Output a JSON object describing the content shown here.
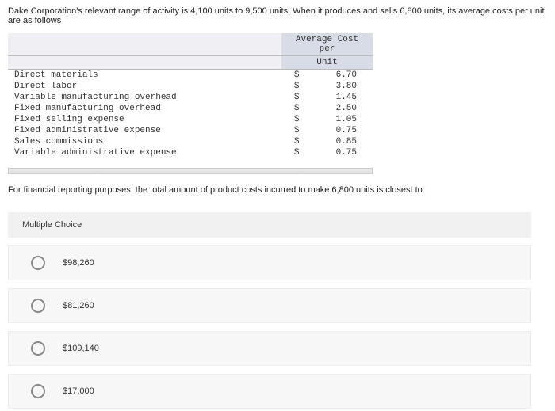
{
  "question": {
    "intro": "Dake Corporation's relevant range of activity is 4,100 units to 9,500 units. When it produces and sells 6,800 units, its average costs per unit are as follows",
    "prompt": "For financial reporting purposes, the total amount of product costs incurred to make 6,800 units is closest to:"
  },
  "cost_table": {
    "header_line1": "Average Cost per",
    "header_line2": "Unit",
    "currency_symbol": "$",
    "header_bg": "#d8dce6",
    "font": "Courier New",
    "rows": [
      {
        "label": "Direct materials",
        "value": "6.70"
      },
      {
        "label": "Direct labor",
        "value": "3.80"
      },
      {
        "label": "Variable manufacturing overhead",
        "value": "1.45"
      },
      {
        "label": "Fixed manufacturing overhead",
        "value": "2.50"
      },
      {
        "label": "Fixed selling expense",
        "value": "1.05"
      },
      {
        "label": "Fixed administrative expense",
        "value": "0.75"
      },
      {
        "label": "Sales commissions",
        "value": "0.85"
      },
      {
        "label": "Variable administrative expense",
        "value": "0.75"
      }
    ]
  },
  "multiple_choice": {
    "header": "Multiple Choice",
    "options": [
      {
        "label": "$98,260"
      },
      {
        "label": "$81,260"
      },
      {
        "label": "$109,140"
      },
      {
        "label": "$17,000"
      }
    ]
  },
  "colors": {
    "page_bg": "#ffffff",
    "text": "#333333",
    "section_bg": "#f1f1f1",
    "choice_bg": "#f7f7f7",
    "radio_border": "#888888"
  }
}
